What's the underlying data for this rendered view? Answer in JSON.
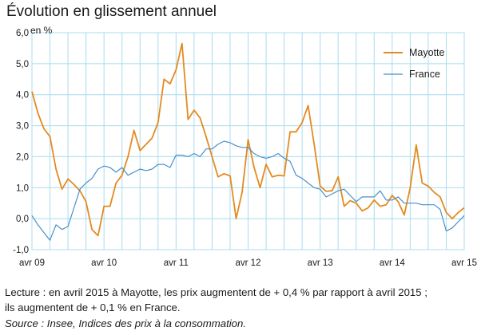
{
  "chart_data": {
    "type": "line",
    "title": "Évolution en glissement annuel",
    "ylabel": "en %",
    "ylim": [
      -1.0,
      6.0
    ],
    "yticks": [
      "6,0",
      "5,0",
      "4,0",
      "3,0",
      "2,0",
      "1,0",
      "0,0",
      "-1,0"
    ],
    "ytick_values": [
      6,
      5,
      4,
      3,
      2,
      1,
      0,
      -1
    ],
    "xticks": [
      "avr 09",
      "avr 10",
      "avr 11",
      "avr 12",
      "avr 13",
      "avr 14",
      "avr 15"
    ],
    "x_start": "avr 09",
    "x_end": "avr 15",
    "grid": true,
    "legend_position": "top-right",
    "series": [
      {
        "name": "Mayotte",
        "color": "#e58a1f",
        "values": [
          4.1,
          3.4,
          2.9,
          2.65,
          1.6,
          0.95,
          1.28,
          1.1,
          0.9,
          0.55,
          -0.35,
          -0.55,
          0.4,
          0.4,
          1.15,
          1.4,
          2.0,
          2.85,
          2.2,
          2.4,
          2.6,
          3.1,
          4.5,
          4.35,
          4.8,
          5.65,
          3.2,
          3.5,
          3.25,
          2.65,
          2.0,
          1.35,
          1.45,
          1.38,
          0.0,
          0.85,
          2.55,
          1.65,
          1.0,
          1.75,
          1.35,
          1.4,
          1.38,
          2.8,
          2.8,
          3.1,
          3.65,
          2.4,
          1.05,
          0.88,
          0.9,
          1.35,
          0.4,
          0.58,
          0.5,
          0.25,
          0.35,
          0.6,
          0.4,
          0.45,
          0.75,
          0.55,
          0.12,
          1.0,
          2.38,
          1.15,
          1.05,
          0.85,
          0.7,
          0.2,
          0.0,
          0.2,
          0.35
        ]
      },
      {
        "name": "France",
        "color": "#4a90c8",
        "values": [
          0.1,
          -0.2,
          -0.45,
          -0.7,
          -0.2,
          -0.35,
          -0.25,
          0.35,
          0.95,
          1.15,
          1.3,
          1.6,
          1.7,
          1.65,
          1.5,
          1.65,
          1.4,
          1.5,
          1.6,
          1.55,
          1.6,
          1.75,
          1.75,
          1.65,
          2.05,
          2.05,
          2.0,
          2.1,
          2.0,
          2.25,
          2.25,
          2.4,
          2.5,
          2.45,
          2.35,
          2.3,
          2.3,
          2.1,
          2.0,
          1.95,
          2.0,
          2.1,
          1.95,
          1.85,
          1.4,
          1.3,
          1.15,
          1.0,
          0.95,
          0.7,
          0.8,
          0.9,
          0.95,
          0.75,
          0.55,
          0.7,
          0.7,
          0.7,
          0.9,
          0.6,
          0.6,
          0.7,
          0.5,
          0.5,
          0.5,
          0.45,
          0.45,
          0.45,
          0.3,
          -0.4,
          -0.3,
          -0.1,
          0.1
        ]
      }
    ]
  },
  "footnote": {
    "line1": "Lecture : en avril 2015 à Mayotte, les prix augmentent de + 0,4 % par rapport à avril 2015 ;",
    "line2": "ils augmentent de + 0,1 % en France.",
    "source": "Source : Insee, Indices des prix à la consommation."
  }
}
